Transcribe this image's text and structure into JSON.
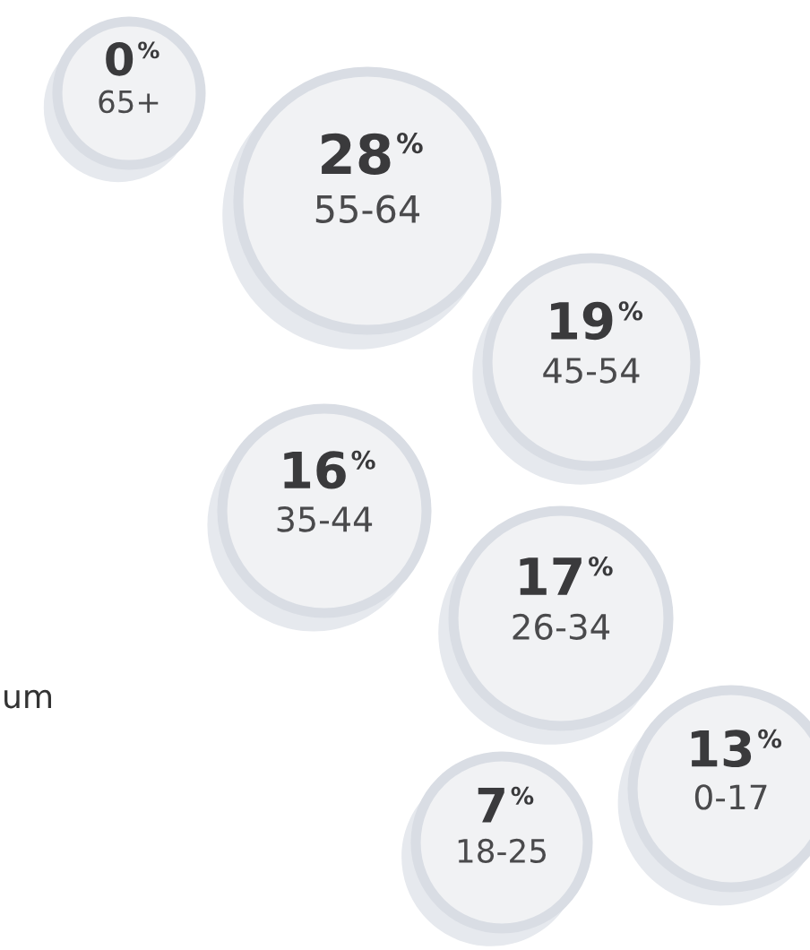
{
  "chart_data": {
    "type": "other",
    "categories": [
      "65+",
      "55-64",
      "45-54",
      "35-44",
      "26-34",
      "0-17",
      "18-25"
    ],
    "values": [
      0,
      28,
      19,
      16,
      17,
      13,
      7
    ],
    "value_labels": [
      "0%",
      "28%",
      "19%",
      "16%",
      "17%",
      "13%",
      "7%"
    ],
    "color": "#f1f2f4",
    "annotations": [
      "um"
    ]
  }
}
